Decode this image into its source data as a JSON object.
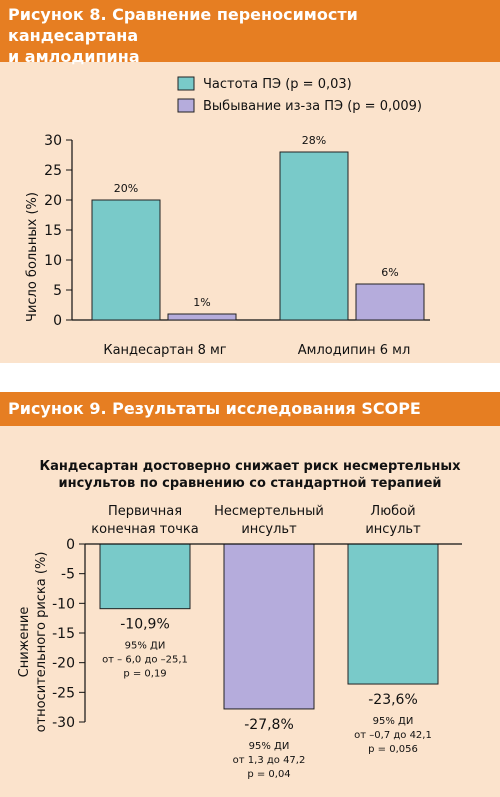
{
  "figure8": {
    "title_line1": "Рисунок 8. Сравнение переносимости кандесартана",
    "title_line2": "и амлодипина",
    "colors": {
      "header": "#e67e22",
      "series1": "#79cac9",
      "series2": "#b5acdc"
    },
    "chart_data": {
      "type": "bar",
      "categories": [
        "Кандесартан 8 мг",
        "Амлодипин 6 мл"
      ],
      "series": [
        {
          "name": "Частота ПЭ (p = 0,03)",
          "values": [
            20,
            28
          ],
          "labels": [
            "20%",
            "28%"
          ]
        },
        {
          "name": "Выбывание из-за ПЭ (p = 0,009)",
          "values": [
            1,
            6
          ],
          "labels": [
            "1%",
            "6%"
          ]
        }
      ],
      "ylabel": "Число больных (%)",
      "ylim": [
        0,
        30
      ],
      "yticks": [
        "0",
        "5",
        "10",
        "15",
        "20",
        "25",
        "30"
      ],
      "legend_position": "top"
    }
  },
  "figure9": {
    "title": "Рисунок 9. Результаты исследования SCOPE",
    "subtitle_line1": "Кандесартан достоверно снижает риск несмертельных",
    "subtitle_line2": "инсультов по сравнению со стандартной терапией",
    "chart_data": {
      "type": "bar",
      "categories": [
        {
          "line1": "Первичная",
          "line2": "конечная точка"
        },
        {
          "line1": "Несмертельный",
          "line2": "инсульт"
        },
        {
          "line1": "Любой",
          "line2": "инсульт"
        }
      ],
      "values": [
        -10.9,
        -27.8,
        -23.6
      ],
      "value_labels": [
        "-10,9%",
        "-27,8%",
        "-23,6%"
      ],
      "ci_notes": [
        [
          "95% ДИ",
          "от – 6,0 до –25,1",
          "p = 0,19"
        ],
        [
          "95% ДИ",
          "от 1,3 до 47,2",
          "p = 0,04"
        ],
        [
          "95% ДИ",
          "от –0,7 до 42,1",
          "p = 0,056"
        ]
      ],
      "bar_colors": [
        "#79cac9",
        "#b5acdc",
        "#79cac9"
      ],
      "ylabel_line1": "Снижение",
      "ylabel_line2": "относительного риска (%)",
      "ylim": [
        -30,
        0
      ],
      "yticks": [
        "0",
        "-5",
        "-10",
        "-15",
        "-20",
        "-25",
        "-30"
      ]
    }
  }
}
